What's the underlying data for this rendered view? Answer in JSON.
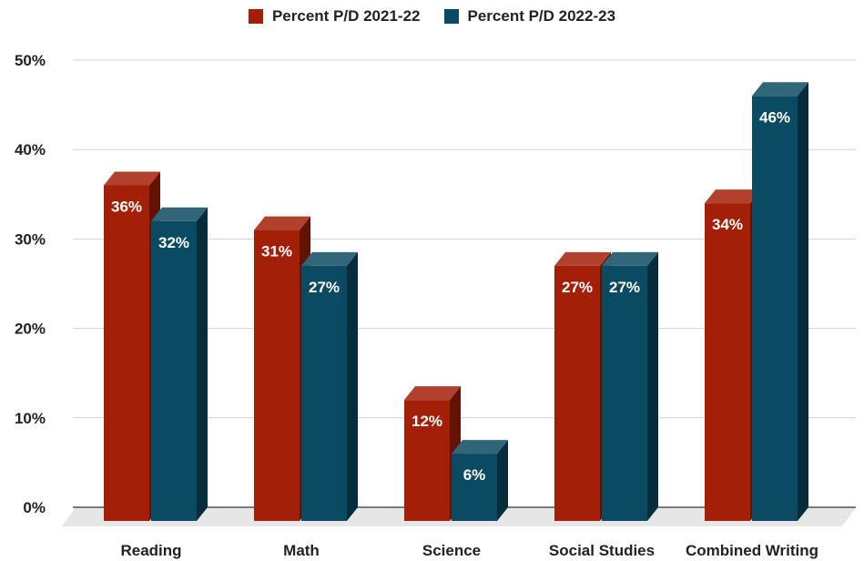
{
  "colors": {
    "series_1": "#a31f07",
    "series_2": "#0b4a63"
  },
  "chart_data": {
    "type": "bar",
    "title": "",
    "xlabel": "",
    "ylabel": "",
    "categories": [
      "Reading",
      "Math",
      "Science",
      "Social Studies",
      "Combined Writing"
    ],
    "series": [
      {
        "name": "Percent P/D 2021-22",
        "values": [
          36,
          31,
          12,
          27,
          34
        ],
        "labels": [
          "36%",
          "31%",
          "12%",
          "27%",
          "34%"
        ]
      },
      {
        "name": "Percent P/D 2022-23",
        "values": [
          32,
          27,
          6,
          27,
          46
        ],
        "labels": [
          "32%",
          "27%",
          "6%",
          "27%",
          "46%"
        ]
      }
    ],
    "y_ticks": [
      0,
      10,
      20,
      30,
      40,
      50
    ],
    "y_tick_labels": [
      "0%",
      "10%",
      "20%",
      "30%",
      "40%",
      "50%"
    ],
    "ylim": [
      0,
      50
    ],
    "grid": true,
    "legend_position": "top-center",
    "style": "3d-bar"
  }
}
